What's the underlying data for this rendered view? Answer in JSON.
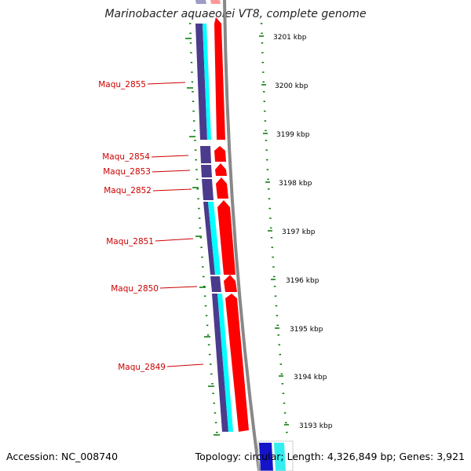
{
  "title": "Marinobacter aquaeolei VT8, complete genome",
  "footer": {
    "accession": "Accession: NC_008740",
    "summary": "Topology: circular; Length: 4,326,849 bp; Genes: 3,921"
  },
  "kbp_ticks": [
    "3201 kbp",
    "3200 kbp",
    "3199 kbp",
    "3198 kbp",
    "3197 kbp",
    "3196 kbp",
    "3195 kbp",
    "3194 kbp",
    "3193 kbp"
  ],
  "gene_labels": [
    "Maqu_2855",
    "Maqu_2854",
    "Maqu_2853",
    "Maqu_2852",
    "Maqu_2851",
    "Maqu_2850",
    "Maqu_2849"
  ],
  "colors": {
    "cds": "#ff0000",
    "gene": "#00ffff",
    "operon": "#4b3b8c",
    "backbone": "#888888",
    "tick": "#007700",
    "label": "#cc0000"
  }
}
